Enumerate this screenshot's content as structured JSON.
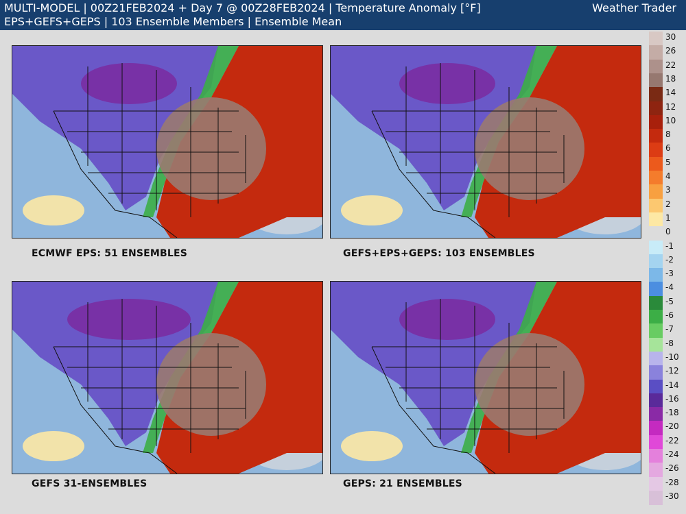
{
  "header": {
    "line1": "MULTI-MODEL | 00Z21FEB2024 + Day 7 @ 00Z28FEB2024 | Temperature Anomaly [°F]",
    "line2": "EPS+GEFS+GEPS | 103 Ensemble Members | Ensemble Mean",
    "brand": "Weather Trader"
  },
  "panels": [
    {
      "caption": "ECMWF EPS: 51 ENSEMBLES"
    },
    {
      "caption": "GEFS+EPS+GEPS: 103 ENSEMBLES"
    },
    {
      "caption": "GEFS 31-ENSEMBLES"
    },
    {
      "caption": "GEPS: 21 ENSEMBLES"
    }
  ],
  "legend": {
    "levels": [
      {
        "label": "30",
        "color": "#d8c8c4"
      },
      {
        "label": "26",
        "color": "#c4aca6"
      },
      {
        "label": "22",
        "color": "#ad918b"
      },
      {
        "label": "18",
        "color": "#967870"
      },
      {
        "label": "14",
        "color": "#7a2a14"
      },
      {
        "label": "12",
        "color": "#8e2410"
      },
      {
        "label": "10",
        "color": "#a8200c"
      },
      {
        "label": "8",
        "color": "#c42a0e"
      },
      {
        "label": "6",
        "color": "#dc3c14"
      },
      {
        "label": "5",
        "color": "#ec5a1c"
      },
      {
        "label": "4",
        "color": "#f47c2c"
      },
      {
        "label": "3",
        "color": "#f8a040"
      },
      {
        "label": "2",
        "color": "#fcc870"
      },
      {
        "label": "1",
        "color": "#fde8a4"
      },
      {
        "label": "0",
        "color": "#dcdcdc"
      },
      {
        "label": "-1",
        "color": "#c8ecf8"
      },
      {
        "label": "-2",
        "color": "#a4d4f0"
      },
      {
        "label": "-3",
        "color": "#7cb8e8"
      },
      {
        "label": "-4",
        "color": "#4c8ee0"
      },
      {
        "label": "-5",
        "color": "#2a8a3a"
      },
      {
        "label": "-6",
        "color": "#3cae46"
      },
      {
        "label": "-7",
        "color": "#68cc62"
      },
      {
        "label": "-8",
        "color": "#a6e49a"
      },
      {
        "label": "-10",
        "color": "#b8b4ec"
      },
      {
        "label": "-12",
        "color": "#8a82dc"
      },
      {
        "label": "-14",
        "color": "#5a4ec4"
      },
      {
        "label": "-16",
        "color": "#5a2a9a"
      },
      {
        "label": "-18",
        "color": "#8a2aa6"
      },
      {
        "label": "-20",
        "color": "#c42ac0"
      },
      {
        "label": "-22",
        "color": "#e048d8"
      },
      {
        "label": "-24",
        "color": "#e480dc"
      },
      {
        "label": "-26",
        "color": "#e4a8e0"
      },
      {
        "label": "-28",
        "color": "#e4c8e4"
      },
      {
        "label": "-30",
        "color": "#d8c0d8"
      }
    ]
  },
  "colors": {
    "ocean": "#8fb6dc",
    "land_cold": "#6a58c8",
    "land_very_cold": "#7a2aa0",
    "land_warm": "#c42a0e",
    "land_hot": "#9a7a70",
    "green_band": "#3cae46"
  }
}
